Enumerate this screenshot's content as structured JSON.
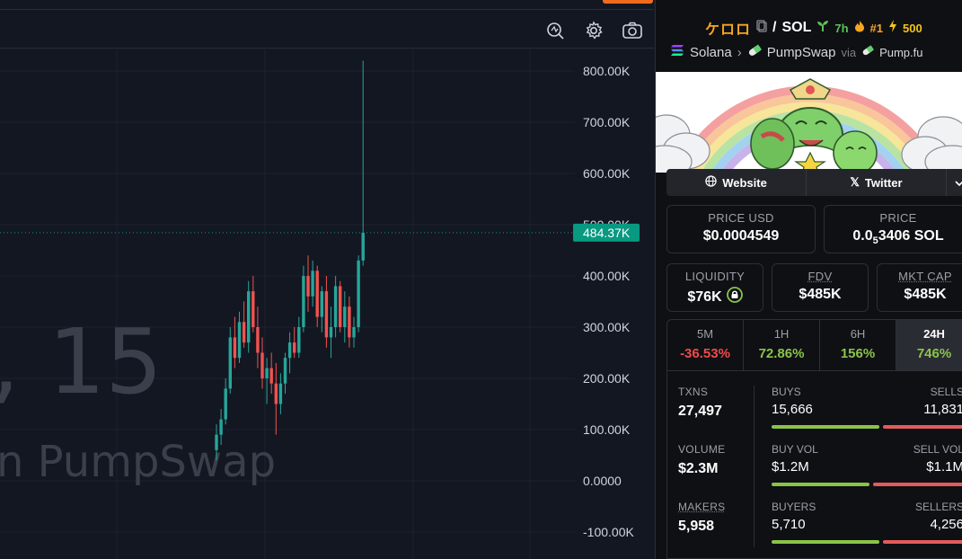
{
  "chart": {
    "toolbar_icons": [
      "indicator-search-icon",
      "settings-gear-icon",
      "camera-icon"
    ],
    "y_ticks": [
      "800.00K",
      "700.00K",
      "600.00K",
      "500.00K",
      "400.00K",
      "300.00K",
      "200.00K",
      "100.00K",
      "0.0000",
      "-100.00K"
    ],
    "last_price_label": "484.37K",
    "watermark_line1": ", 15",
    "watermark_line2": "n PumpSwap",
    "colors": {
      "up": "#26a69a",
      "down": "#ef5350",
      "last_price_bg": "#089981"
    }
  },
  "chart_data": {
    "type": "candlestick",
    "ylabel": "",
    "ylim": [
      -100000,
      850000
    ],
    "series": [
      {
        "values_ohlc": [
          [
            60000,
            110000,
            40000,
            90000
          ],
          [
            90000,
            140000,
            70000,
            120000
          ],
          [
            120000,
            200000,
            110000,
            180000
          ],
          [
            180000,
            300000,
            170000,
            280000
          ],
          [
            280000,
            320000,
            220000,
            240000
          ],
          [
            240000,
            330000,
            230000,
            310000
          ],
          [
            310000,
            350000,
            260000,
            270000
          ],
          [
            270000,
            390000,
            250000,
            370000
          ],
          [
            370000,
            400000,
            290000,
            300000
          ],
          [
            300000,
            340000,
            220000,
            250000
          ],
          [
            250000,
            280000,
            180000,
            200000
          ],
          [
            200000,
            240000,
            150000,
            220000
          ],
          [
            220000,
            250000,
            170000,
            190000
          ],
          [
            190000,
            230000,
            90000,
            150000
          ],
          [
            150000,
            210000,
            130000,
            190000
          ],
          [
            190000,
            250000,
            170000,
            240000
          ],
          [
            240000,
            290000,
            210000,
            270000
          ],
          [
            270000,
            300000,
            240000,
            250000
          ],
          [
            250000,
            320000,
            240000,
            300000
          ],
          [
            300000,
            420000,
            290000,
            400000
          ],
          [
            400000,
            440000,
            330000,
            360000
          ],
          [
            360000,
            430000,
            340000,
            410000
          ],
          [
            410000,
            420000,
            300000,
            320000
          ],
          [
            320000,
            380000,
            290000,
            370000
          ],
          [
            370000,
            400000,
            260000,
            280000
          ],
          [
            280000,
            340000,
            240000,
            300000
          ],
          [
            300000,
            400000,
            280000,
            380000
          ],
          [
            380000,
            390000,
            290000,
            300000
          ],
          [
            300000,
            370000,
            270000,
            340000
          ],
          [
            340000,
            360000,
            260000,
            280000
          ],
          [
            280000,
            320000,
            260000,
            300000
          ],
          [
            300000,
            440000,
            290000,
            430000
          ],
          [
            430000,
            820000,
            420000,
            484370
          ]
        ]
      }
    ],
    "last_value": 484370
  },
  "token": {
    "symbol": "ケロロ",
    "pair_sep": "/",
    "quote": "SOL",
    "age": "7h",
    "rank": "#1",
    "boosts": "500"
  },
  "chain": {
    "chain_name": "Solana",
    "dex_name": "PumpSwap",
    "via_label": "via",
    "launchpad": "Pump.fu"
  },
  "links": {
    "website": "Website",
    "twitter": "Twitter"
  },
  "prices": {
    "usd_label": "PRICE USD",
    "usd_value": "$0.0004549",
    "native_label": "PRICE",
    "native_prefix": "0.0",
    "native_sub": "5",
    "native_rest": "3406 SOL"
  },
  "metrics": {
    "liquidity_label": "LIQUIDITY",
    "liquidity_value": "$76K",
    "fdv_label": "FDV",
    "fdv_value": "$485K",
    "mcap_label": "MKT CAP",
    "mcap_value": "$485K"
  },
  "periods": [
    {
      "label": "5M",
      "change": "-36.53%",
      "color": "#f04a4a"
    },
    {
      "label": "1H",
      "change": "72.86%",
      "color": "#8bc34a"
    },
    {
      "label": "6H",
      "change": "156%",
      "color": "#8bc34a"
    },
    {
      "label": "24H",
      "change": "746%",
      "color": "#8bc34a"
    }
  ],
  "stats": {
    "txns_label": "TXNS",
    "txns_value": "27,497",
    "volume_label": "VOLUME",
    "volume_value": "$2.3M",
    "makers_label": "MAKERS",
    "makers_value": "5,958",
    "buys_label": "BUYS",
    "buys_value": "15,666",
    "sells_label": "SELLS",
    "sells_value": "11,831",
    "buyvol_label": "BUY VOL",
    "buyvol_value": "$1.2M",
    "sellvol_label": "SELL VOL",
    "sellvol_value": "$1.1M",
    "buyers_label": "BUYERS",
    "buyers_value": "5,710",
    "sellers_label": "SELLERS",
    "sellers_value": "4,256",
    "buys_share": 0.57,
    "buyvol_share": 0.52,
    "buyers_share": 0.57
  }
}
